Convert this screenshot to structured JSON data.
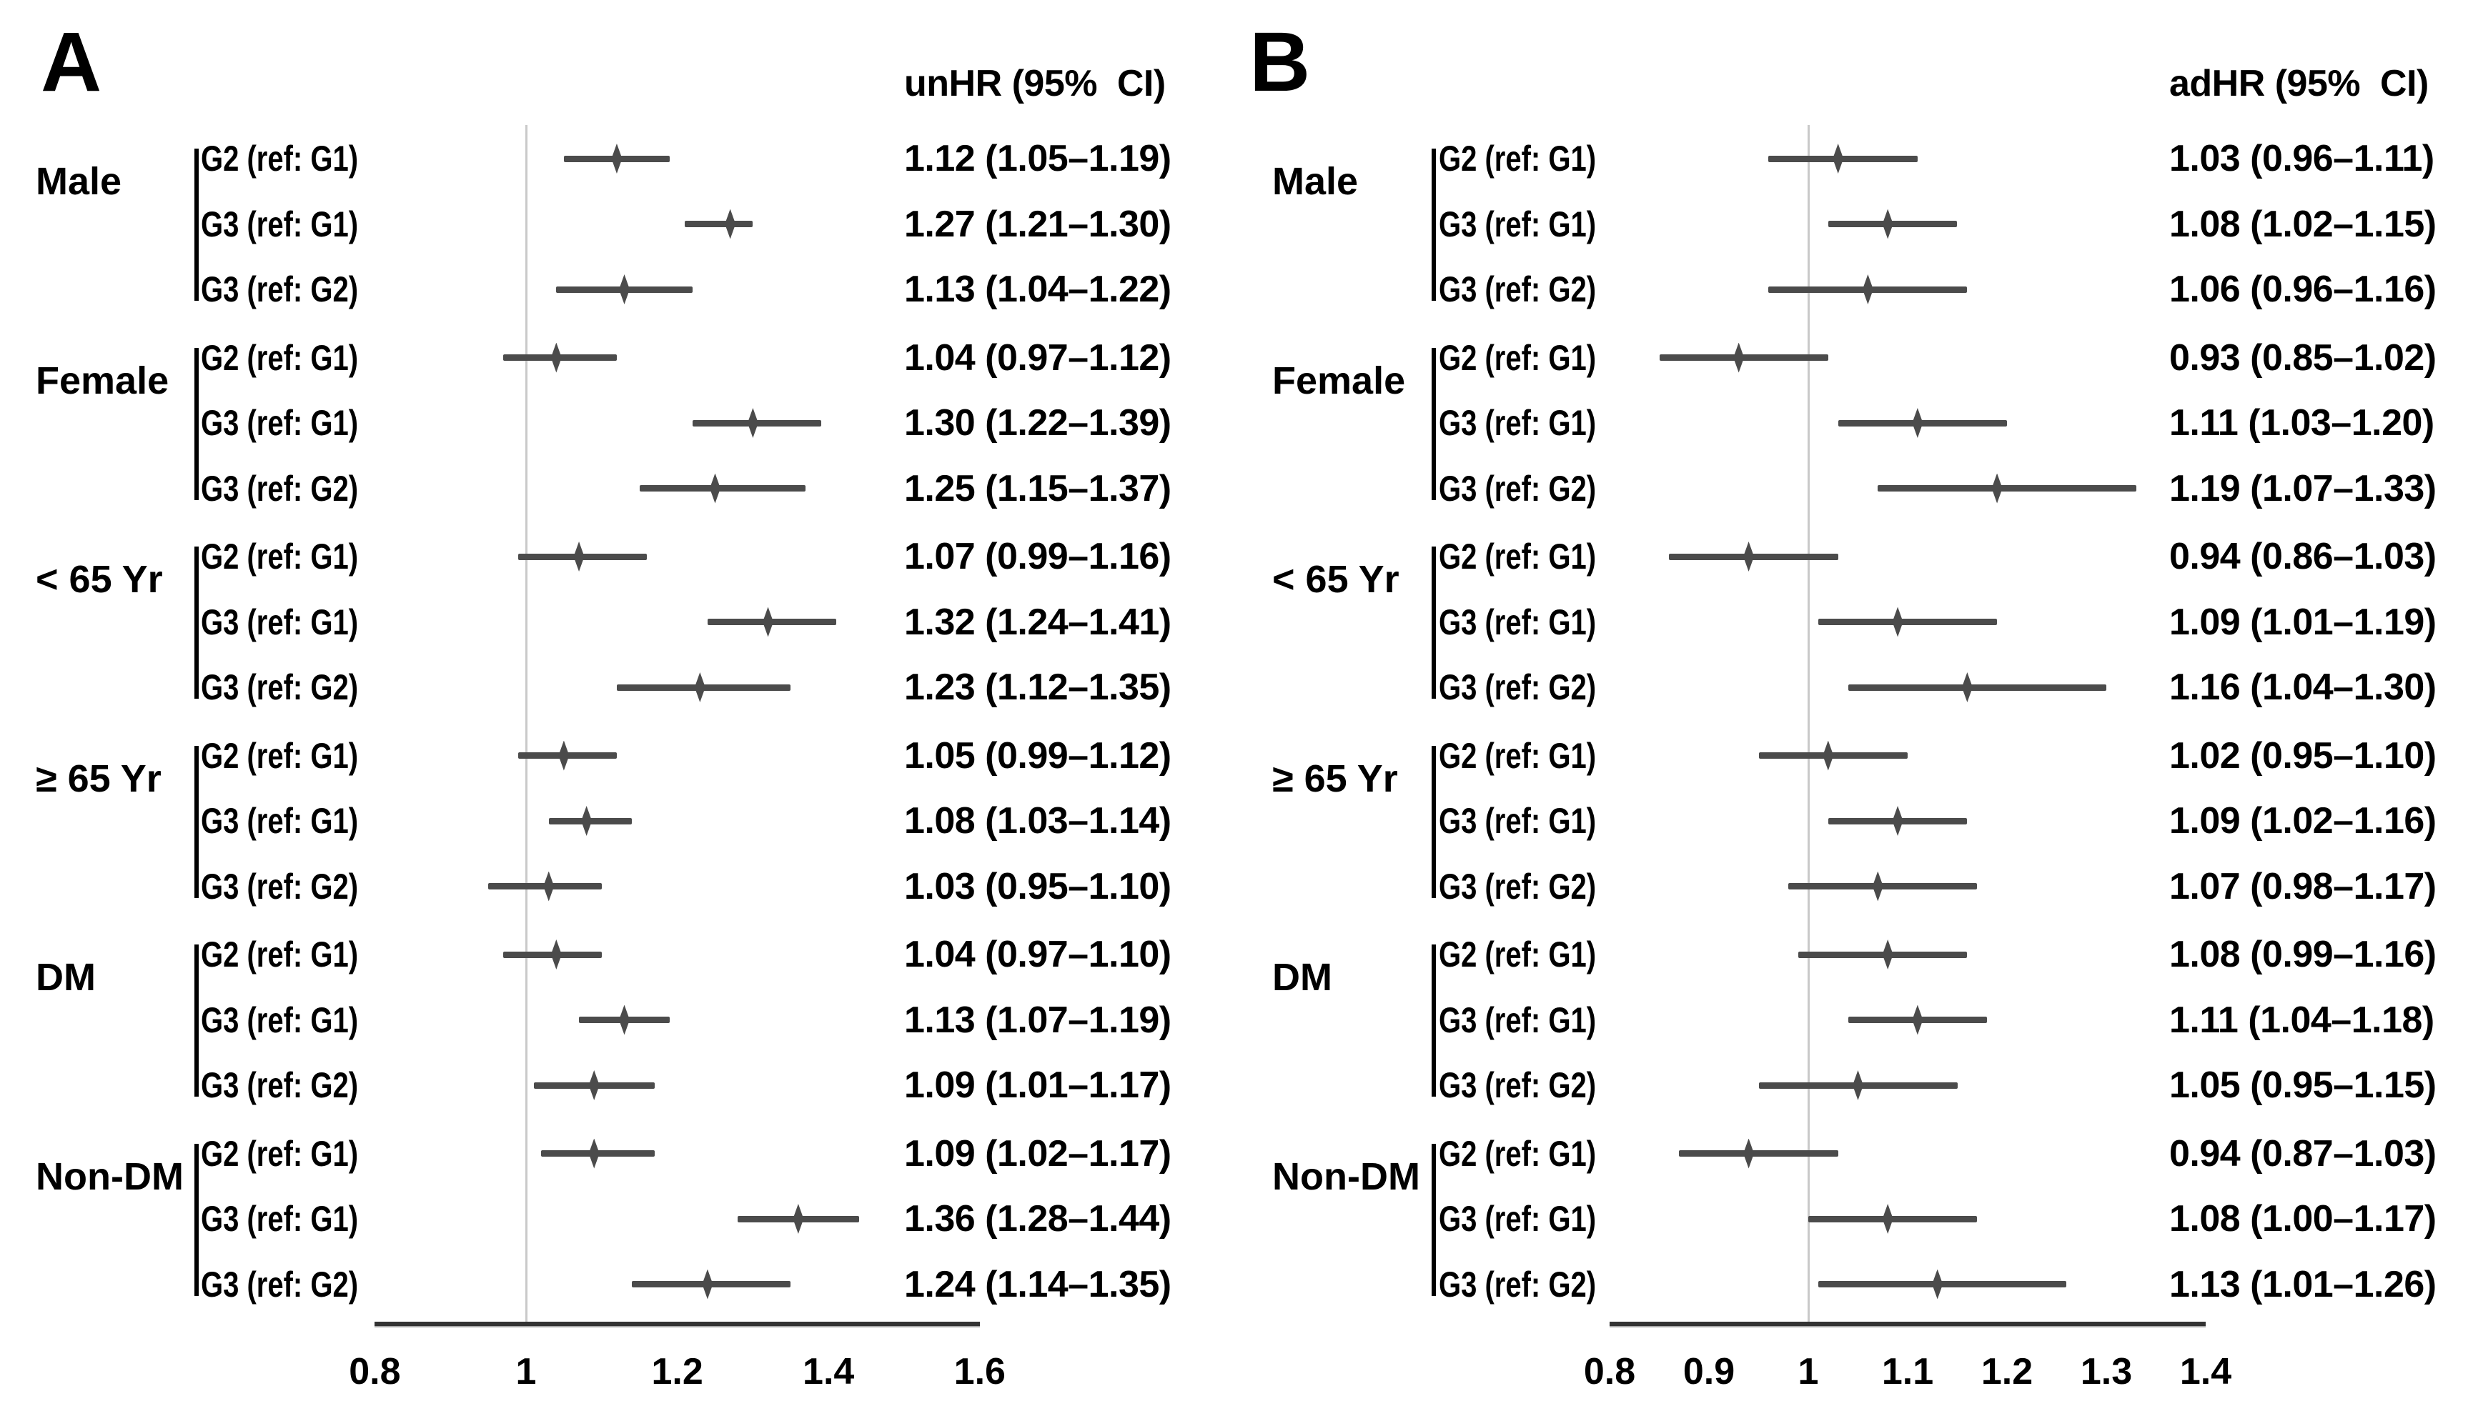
{
  "chart_data": [
    {
      "type": "scatter",
      "variant": "forest-plot",
      "panel_label": "A",
      "title": "unHR (95%  CI)",
      "xlabel": "",
      "xlim": [
        0.8,
        1.6
      ],
      "x_ticks": [
        0.8,
        1,
        1.2,
        1.4,
        1.6
      ],
      "x_tick_labels": [
        "0.8",
        "1",
        "1.2",
        "1.4",
        "1.6"
      ],
      "reference_line": 1,
      "grid": false,
      "legend_position": "none",
      "marker_color": "#4b4b4b",
      "reference_line_color": "#c9c9c9",
      "axis_color": "#333333",
      "groups": [
        {
          "group": "Male",
          "estimates": [
            {
              "comparison": "G2 (ref: G1)",
              "hr": 1.12,
              "ci_low": 1.05,
              "ci_high": 1.19,
              "label": "1.12 (1.05–1.19)"
            },
            {
              "comparison": "G3 (ref: G1)",
              "hr": 1.27,
              "ci_low": 1.21,
              "ci_high": 1.3,
              "label": "1.27 (1.21–1.30)"
            },
            {
              "comparison": "G3 (ref: G2)",
              "hr": 1.13,
              "ci_low": 1.04,
              "ci_high": 1.22,
              "label": "1.13 (1.04–1.22)"
            }
          ]
        },
        {
          "group": "Female",
          "estimates": [
            {
              "comparison": "G2 (ref: G1)",
              "hr": 1.04,
              "ci_low": 0.97,
              "ci_high": 1.12,
              "label": "1.04 (0.97–1.12)"
            },
            {
              "comparison": "G3 (ref: G1)",
              "hr": 1.3,
              "ci_low": 1.22,
              "ci_high": 1.39,
              "label": "1.30 (1.22–1.39)"
            },
            {
              "comparison": "G3 (ref: G2)",
              "hr": 1.25,
              "ci_low": 1.15,
              "ci_high": 1.37,
              "label": "1.25 (1.15–1.37)"
            }
          ]
        },
        {
          "group": "< 65 Yr",
          "estimates": [
            {
              "comparison": "G2 (ref: G1)",
              "hr": 1.07,
              "ci_low": 0.99,
              "ci_high": 1.16,
              "label": "1.07 (0.99–1.16)"
            },
            {
              "comparison": "G3 (ref: G1)",
              "hr": 1.32,
              "ci_low": 1.24,
              "ci_high": 1.41,
              "label": "1.32 (1.24–1.41)"
            },
            {
              "comparison": "G3 (ref: G2)",
              "hr": 1.23,
              "ci_low": 1.12,
              "ci_high": 1.35,
              "label": "1.23 (1.12–1.35)"
            }
          ]
        },
        {
          "group": "≥ 65 Yr",
          "estimates": [
            {
              "comparison": "G2 (ref: G1)",
              "hr": 1.05,
              "ci_low": 0.99,
              "ci_high": 1.12,
              "label": "1.05 (0.99–1.12)"
            },
            {
              "comparison": "G3 (ref: G1)",
              "hr": 1.08,
              "ci_low": 1.03,
              "ci_high": 1.14,
              "label": "1.08 (1.03–1.14)"
            },
            {
              "comparison": "G3 (ref: G2)",
              "hr": 1.03,
              "ci_low": 0.95,
              "ci_high": 1.1,
              "label": "1.03 (0.95–1.10)"
            }
          ]
        },
        {
          "group": "DM",
          "estimates": [
            {
              "comparison": "G2 (ref: G1)",
              "hr": 1.04,
              "ci_low": 0.97,
              "ci_high": 1.1,
              "label": "1.04 (0.97–1.10)"
            },
            {
              "comparison": "G3 (ref: G1)",
              "hr": 1.13,
              "ci_low": 1.07,
              "ci_high": 1.19,
              "label": "1.13 (1.07–1.19)"
            },
            {
              "comparison": "G3 (ref: G2)",
              "hr": 1.09,
              "ci_low": 1.01,
              "ci_high": 1.17,
              "label": "1.09 (1.01–1.17)"
            }
          ]
        },
        {
          "group": "Non-DM",
          "estimates": [
            {
              "comparison": "G2 (ref: G1)",
              "hr": 1.09,
              "ci_low": 1.02,
              "ci_high": 1.17,
              "label": "1.09 (1.02–1.17)"
            },
            {
              "comparison": "G3 (ref: G1)",
              "hr": 1.36,
              "ci_low": 1.28,
              "ci_high": 1.44,
              "label": "1.36 (1.28–1.44)"
            },
            {
              "comparison": "G3 (ref: G2)",
              "hr": 1.24,
              "ci_low": 1.14,
              "ci_high": 1.35,
              "label": "1.24 (1.14–1.35)"
            }
          ]
        }
      ]
    },
    {
      "type": "scatter",
      "variant": "forest-plot",
      "panel_label": "B",
      "title": "adHR (95%  CI)",
      "xlabel": "",
      "xlim": [
        0.8,
        1.4
      ],
      "x_ticks": [
        0.8,
        0.9,
        1,
        1.1,
        1.2,
        1.3,
        1.4
      ],
      "x_tick_labels": [
        "0.8",
        "0.9",
        "1",
        "1.1",
        "1.2",
        "1.3",
        "1.4"
      ],
      "reference_line": 1,
      "grid": false,
      "legend_position": "none",
      "marker_color": "#4b4b4b",
      "reference_line_color": "#c9c9c9",
      "axis_color": "#333333",
      "groups": [
        {
          "group": "Male",
          "estimates": [
            {
              "comparison": "G2 (ref: G1)",
              "hr": 1.03,
              "ci_low": 0.96,
              "ci_high": 1.11,
              "label": "1.03 (0.96–1.11)"
            },
            {
              "comparison": "G3 (ref: G1)",
              "hr": 1.08,
              "ci_low": 1.02,
              "ci_high": 1.15,
              "label": "1.08 (1.02–1.15)"
            },
            {
              "comparison": "G3 (ref: G2)",
              "hr": 1.06,
              "ci_low": 0.96,
              "ci_high": 1.16,
              "label": "1.06 (0.96–1.16)"
            }
          ]
        },
        {
          "group": "Female",
          "estimates": [
            {
              "comparison": "G2 (ref: G1)",
              "hr": 0.93,
              "ci_low": 0.85,
              "ci_high": 1.02,
              "label": "0.93 (0.85–1.02)"
            },
            {
              "comparison": "G3 (ref: G1)",
              "hr": 1.11,
              "ci_low": 1.03,
              "ci_high": 1.2,
              "label": "1.11 (1.03–1.20)"
            },
            {
              "comparison": "G3 (ref: G2)",
              "hr": 1.19,
              "ci_low": 1.07,
              "ci_high": 1.33,
              "label": "1.19 (1.07–1.33)"
            }
          ]
        },
        {
          "group": "< 65 Yr",
          "estimates": [
            {
              "comparison": "G2 (ref: G1)",
              "hr": 0.94,
              "ci_low": 0.86,
              "ci_high": 1.03,
              "label": "0.94 (0.86–1.03)"
            },
            {
              "comparison": "G3 (ref: G1)",
              "hr": 1.09,
              "ci_low": 1.01,
              "ci_high": 1.19,
              "label": "1.09 (1.01–1.19)"
            },
            {
              "comparison": "G3 (ref: G2)",
              "hr": 1.16,
              "ci_low": 1.04,
              "ci_high": 1.3,
              "label": "1.16 (1.04–1.30)"
            }
          ]
        },
        {
          "group": "≥ 65 Yr",
          "estimates": [
            {
              "comparison": "G2 (ref: G1)",
              "hr": 1.02,
              "ci_low": 0.95,
              "ci_high": 1.1,
              "label": "1.02 (0.95–1.10)"
            },
            {
              "comparison": "G3 (ref: G1)",
              "hr": 1.09,
              "ci_low": 1.02,
              "ci_high": 1.16,
              "label": "1.09 (1.02–1.16)"
            },
            {
              "comparison": "G3 (ref: G2)",
              "hr": 1.07,
              "ci_low": 0.98,
              "ci_high": 1.17,
              "label": "1.07 (0.98–1.17)"
            }
          ]
        },
        {
          "group": "DM",
          "estimates": [
            {
              "comparison": "G2 (ref: G1)",
              "hr": 1.08,
              "ci_low": 0.99,
              "ci_high": 1.16,
              "label": "1.08 (0.99–1.16)"
            },
            {
              "comparison": "G3 (ref: G1)",
              "hr": 1.11,
              "ci_low": 1.04,
              "ci_high": 1.18,
              "label": "1.11 (1.04–1.18)"
            },
            {
              "comparison": "G3 (ref: G2)",
              "hr": 1.05,
              "ci_low": 0.95,
              "ci_high": 1.15,
              "label": "1.05 (0.95–1.15)"
            }
          ]
        },
        {
          "group": "Non-DM",
          "estimates": [
            {
              "comparison": "G2 (ref: G1)",
              "hr": 0.94,
              "ci_low": 0.87,
              "ci_high": 1.03,
              "label": "0.94 (0.87–1.03)"
            },
            {
              "comparison": "G3 (ref: G1)",
              "hr": 1.08,
              "ci_low": 1.0,
              "ci_high": 1.17,
              "label": "1.08 (1.00–1.17)"
            },
            {
              "comparison": "G3 (ref: G2)",
              "hr": 1.13,
              "ci_low": 1.01,
              "ci_high": 1.26,
              "label": "1.13 (1.01–1.26)"
            }
          ]
        }
      ]
    }
  ]
}
